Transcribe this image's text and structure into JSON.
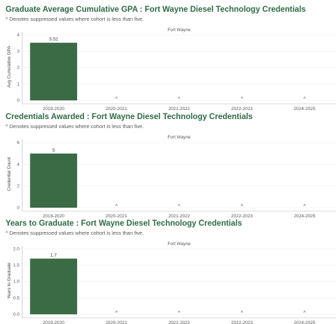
{
  "chart_data": [
    {
      "type": "bar",
      "title": "Graduate Average Cumulative GPA : Fort Wayne Diesel Technology Credentials",
      "subtitle": "^ Denotes suppressed values where cohort is less than five.",
      "facet": "Fort Wayne",
      "ylabel": "Avg Cumulative GPA",
      "categories": [
        "2019-2020",
        "2020-2021",
        "2021-2022",
        "2022-2023",
        "2024-2025"
      ],
      "values": [
        3.52,
        null,
        null,
        null,
        null
      ],
      "data_labels": [
        "3.52",
        "^",
        "^",
        "^",
        "^"
      ],
      "yticks": [
        "0",
        "1",
        "2",
        "3",
        "4"
      ],
      "ylim": [
        0,
        4.1
      ],
      "grid": true,
      "bar_color": "#3a6b45"
    },
    {
      "type": "bar",
      "title": "Credentials Awarded : Fort Wayne Diesel Technology Credentials",
      "subtitle": "^ Denotes suppressed values where cohort is less than five.",
      "facet": "Fort Wayne",
      "ylabel": "Credential Count",
      "categories": [
        "2019-2020",
        "2020-2021",
        "2021-2022",
        "2022-2023",
        "2024-2025"
      ],
      "values": [
        5,
        null,
        null,
        null,
        null
      ],
      "data_labels": [
        "5",
        "^",
        "^",
        "^",
        "^"
      ],
      "yticks": [
        "0",
        "2",
        "4",
        "6"
      ],
      "ylim": [
        0,
        6.2
      ],
      "grid": true,
      "bar_color": "#3a6b45"
    },
    {
      "type": "bar",
      "title": "Years to Graduate : Fort Wayne Diesel Technology Credentials",
      "subtitle": "^ Denotes suppressed values where cohort is less than five.",
      "facet": "Fort Wayne",
      "ylabel": "Years to Graduate",
      "categories": [
        "2019-2020",
        "2020-2021",
        "2021-2022",
        "2022-2023",
        "2024-2025"
      ],
      "values": [
        1.7,
        null,
        null,
        null,
        null
      ],
      "data_labels": [
        "1.7",
        "^",
        "^",
        "^",
        "^"
      ],
      "yticks": [
        "0.0",
        "0.5",
        "1.0",
        "1.5",
        "2.0"
      ],
      "ylim": [
        0,
        2.05
      ],
      "grid": true,
      "bar_color": "#3a6b45"
    }
  ]
}
